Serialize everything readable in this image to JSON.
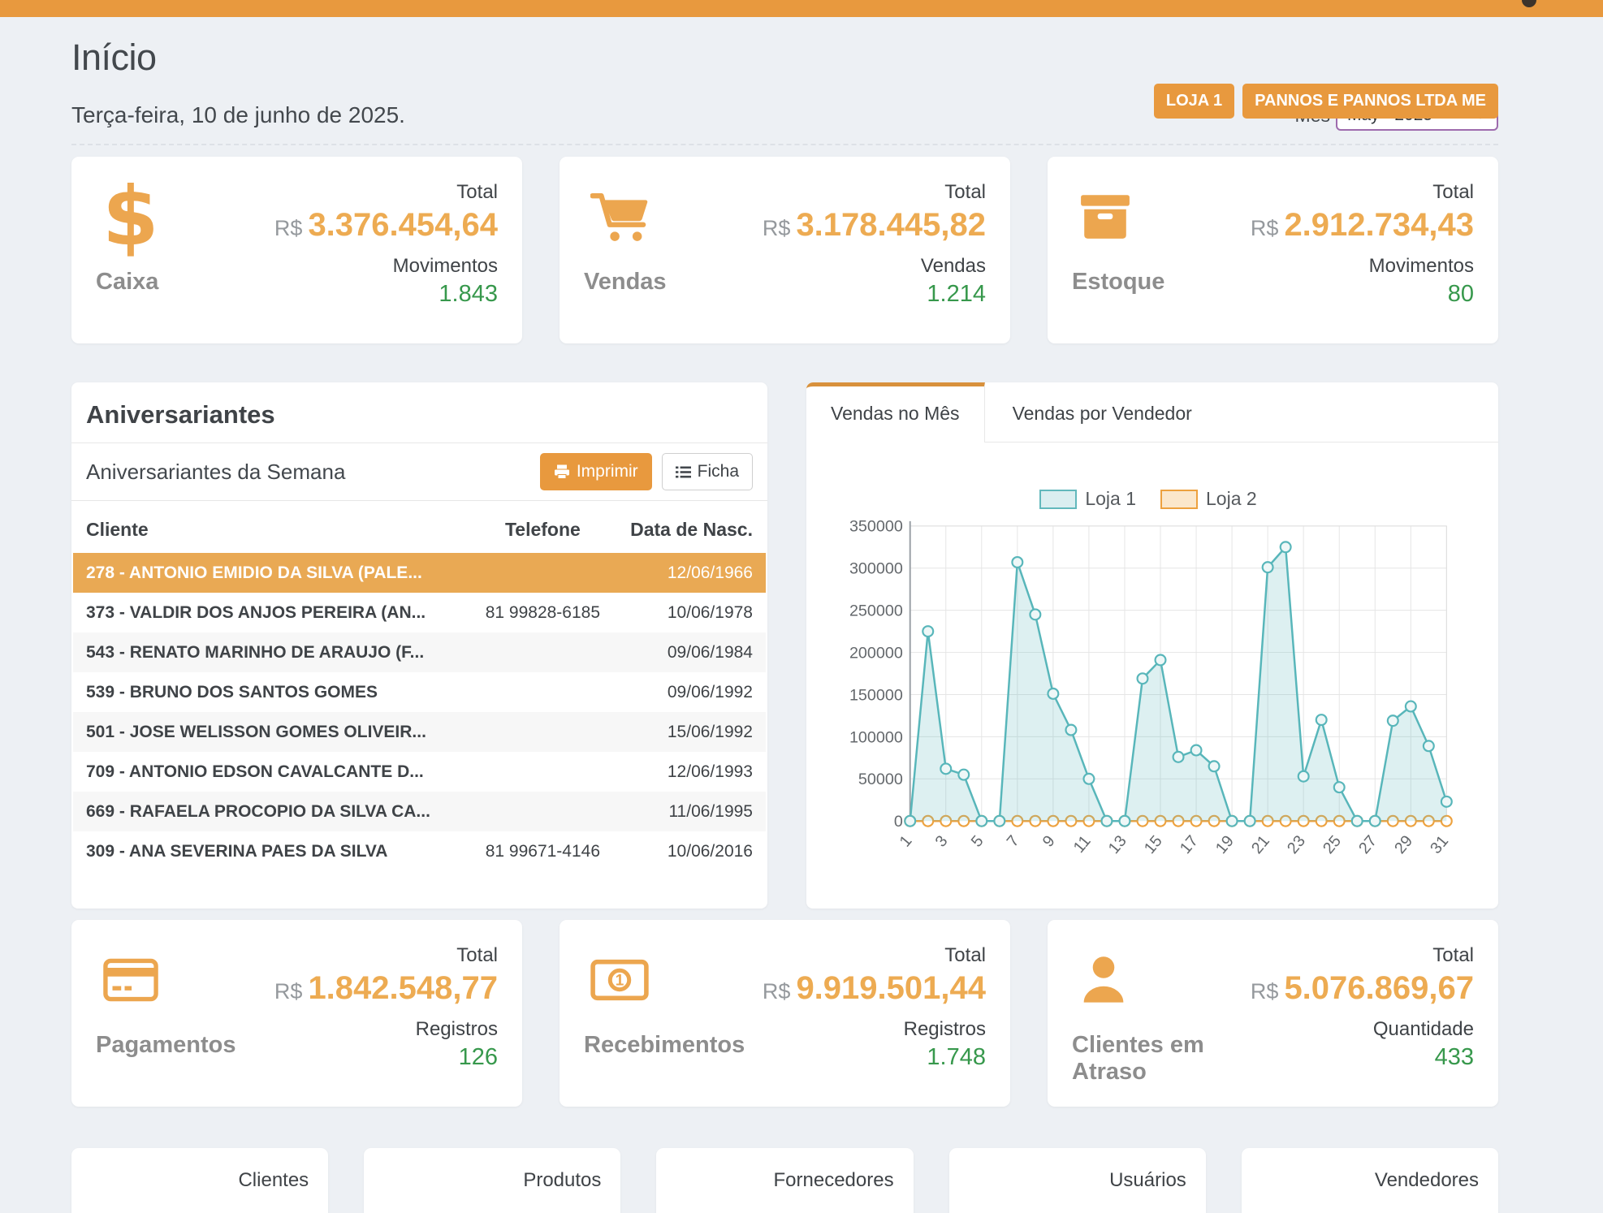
{
  "header": {
    "title": "Início",
    "badges": [
      "LOJA 1",
      "PANNOS E PANNOS LTDA ME"
    ],
    "date": "Terça-feira, 10 de junho de 2025.",
    "month_label": "Mês",
    "month_value": "May - 2025"
  },
  "stats_top": [
    {
      "icon": "dollar-icon",
      "label": "Caixa",
      "total_label": "Total",
      "currency": "R$",
      "total": "3.376.454,64",
      "count_label": "Movimentos",
      "count": "1.843"
    },
    {
      "icon": "cart-icon",
      "label": "Vendas",
      "total_label": "Total",
      "currency": "R$",
      "total": "3.178.445,82",
      "count_label": "Vendas",
      "count": "1.214"
    },
    {
      "icon": "box-icon",
      "label": "Estoque",
      "total_label": "Total",
      "currency": "R$",
      "total": "2.912.734,43",
      "count_label": "Movimentos",
      "count": "80"
    }
  ],
  "birthdays": {
    "title": "Aniversariantes",
    "subtitle": "Aniversariantes da Semana",
    "print_button": "Imprimir",
    "ficha_button": "Ficha",
    "columns": [
      "Cliente",
      "Telefone",
      "Data de Nasc."
    ],
    "rows": [
      {
        "client": "278 - ANTONIO EMIDIO DA SILVA (PALE...",
        "phone": "",
        "birth": "12/06/1966",
        "highlight": true
      },
      {
        "client": "373 - VALDIR DOS ANJOS PEREIRA (AN...",
        "phone": "81 99828-6185",
        "birth": "10/06/1978",
        "highlight": false
      },
      {
        "client": "543 - RENATO MARINHO DE ARAUJO (F...",
        "phone": "",
        "birth": "09/06/1984",
        "highlight": false
      },
      {
        "client": "539 - BRUNO DOS SANTOS GOMES",
        "phone": "",
        "birth": "09/06/1992",
        "highlight": false
      },
      {
        "client": "501 - JOSE WELISSON GOMES OLIVEIR...",
        "phone": "",
        "birth": "15/06/1992",
        "highlight": false
      },
      {
        "client": "709 - ANTONIO EDSON CAVALCANTE D...",
        "phone": "",
        "birth": "12/06/1993",
        "highlight": false
      },
      {
        "client": "669 - RAFAELA PROCOPIO DA SILVA CA...",
        "phone": "",
        "birth": "11/06/1995",
        "highlight": false
      },
      {
        "client": "309 - ANA SEVERINA PAES DA SILVA",
        "phone": "81 99671-4146",
        "birth": "10/06/2016",
        "highlight": false
      }
    ]
  },
  "chart_tabs": [
    {
      "label": "Vendas no Mês",
      "active": true
    },
    {
      "label": "Vendas por Vendedor",
      "active": false
    }
  ],
  "chart_data": {
    "type": "area",
    "x": [
      1,
      2,
      3,
      4,
      5,
      6,
      7,
      8,
      9,
      10,
      11,
      12,
      13,
      14,
      15,
      16,
      17,
      18,
      19,
      20,
      21,
      22,
      23,
      24,
      25,
      26,
      27,
      28,
      29,
      30,
      31
    ],
    "x_tick_labels": [
      1,
      3,
      5,
      7,
      9,
      11,
      13,
      15,
      17,
      19,
      21,
      23,
      25,
      27,
      29,
      31
    ],
    "ylim": [
      0,
      350000
    ],
    "ytick_step": 50000,
    "grid": true,
    "legend_position": "top",
    "series": [
      {
        "name": "Loja 1",
        "color": "#58b6ba",
        "fill": "rgba(99,186,189,0.22)",
        "marker_fill": "#eef7f7",
        "values": [
          0,
          225000,
          62000,
          55000,
          0,
          0,
          307000,
          245000,
          151000,
          108000,
          50000,
          0,
          0,
          169000,
          191000,
          76000,
          84000,
          65000,
          0,
          0,
          301000,
          325000,
          53000,
          120000,
          40000,
          0,
          0,
          119000,
          136000,
          89000,
          23000
        ]
      },
      {
        "name": "Loja 2",
        "color": "#eda23f",
        "fill": "none",
        "marker_fill": "#ffffff",
        "values": [
          0,
          0,
          0,
          0,
          0,
          0,
          0,
          0,
          0,
          0,
          0,
          0,
          0,
          0,
          0,
          0,
          0,
          0,
          0,
          0,
          0,
          0,
          0,
          0,
          0,
          0,
          0,
          0,
          0,
          0,
          0
        ]
      }
    ]
  },
  "stats_bottom": [
    {
      "icon": "credit-card-icon",
      "label": "Pagamentos",
      "total_label": "Total",
      "currency": "R$",
      "total": "1.842.548,77",
      "count_label": "Registros",
      "count": "126"
    },
    {
      "icon": "money-bill-icon",
      "label": "Recebimentos",
      "total_label": "Total",
      "currency": "R$",
      "total": "9.919.501,44",
      "count_label": "Registros",
      "count": "1.748"
    },
    {
      "icon": "person-icon",
      "label": "Clientes em Atraso",
      "total_label": "Total",
      "currency": "R$",
      "total": "5.076.869,67",
      "count_label": "Quantidade",
      "count": "433"
    }
  ],
  "footer_cards": [
    "Clientes",
    "Produtos",
    "Fornecedores",
    "Usuários",
    "Vendedores"
  ],
  "colors": {
    "accent": "#e8993e",
    "value_orange": "#edab52",
    "count_green": "#37984c",
    "teal": "#58b6ba",
    "chart_orange": "#eda23f",
    "highlight_row": "#e9a954",
    "select_border": "#9e6bad"
  }
}
